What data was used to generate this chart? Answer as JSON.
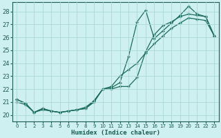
{
  "xlabel": "Humidex (Indice chaleur)",
  "xlim": [
    -0.5,
    23.5
  ],
  "ylim": [
    19.5,
    28.7
  ],
  "xticks": [
    0,
    1,
    2,
    3,
    4,
    5,
    6,
    7,
    8,
    9,
    10,
    11,
    12,
    13,
    14,
    15,
    16,
    17,
    18,
    19,
    20,
    21,
    22,
    23
  ],
  "yticks": [
    20,
    21,
    22,
    23,
    24,
    25,
    26,
    27,
    28
  ],
  "background_color": "#cff0f0",
  "grid_color": "#aad8d4",
  "line_color": "#1a6b5a",
  "lines": [
    {
      "x": [
        0,
        1,
        2,
        3,
        4,
        5,
        6,
        7,
        8,
        9,
        10,
        11,
        12,
        13,
        14,
        15,
        16,
        17,
        18,
        19,
        20,
        21,
        22,
        23
      ],
      "y": [
        21.2,
        20.9,
        20.2,
        20.5,
        20.3,
        20.2,
        20.3,
        20.4,
        20.5,
        21.1,
        22.0,
        22.1,
        22.5,
        24.5,
        27.2,
        28.1,
        25.9,
        26.5,
        27.1,
        27.7,
        28.4,
        27.8,
        27.6,
        26.1
      ]
    },
    {
      "x": [
        0,
        1,
        2,
        3,
        4,
        5,
        6,
        7,
        8,
        9,
        10,
        11,
        12,
        13,
        14,
        15,
        16,
        17,
        18,
        19,
        20,
        21,
        22,
        23
      ],
      "y": [
        21.0,
        20.8,
        20.2,
        20.4,
        20.3,
        20.2,
        20.3,
        20.4,
        20.6,
        21.1,
        22.0,
        22.2,
        23.0,
        23.5,
        24.0,
        24.8,
        25.5,
        26.1,
        26.7,
        27.1,
        27.5,
        27.4,
        27.3,
        26.1
      ]
    },
    {
      "x": [
        0,
        1,
        2,
        3,
        4,
        5,
        6,
        7,
        8,
        9,
        10,
        11,
        12,
        13,
        14,
        15,
        16,
        17,
        18,
        19,
        20,
        21,
        22,
        23
      ],
      "y": [
        21.2,
        20.9,
        20.2,
        20.5,
        20.3,
        20.2,
        20.3,
        20.4,
        20.5,
        21.0,
        22.0,
        22.0,
        22.2,
        22.2,
        22.9,
        24.9,
        26.2,
        26.9,
        27.2,
        27.6,
        27.8,
        27.7,
        27.6,
        26.1
      ]
    }
  ]
}
